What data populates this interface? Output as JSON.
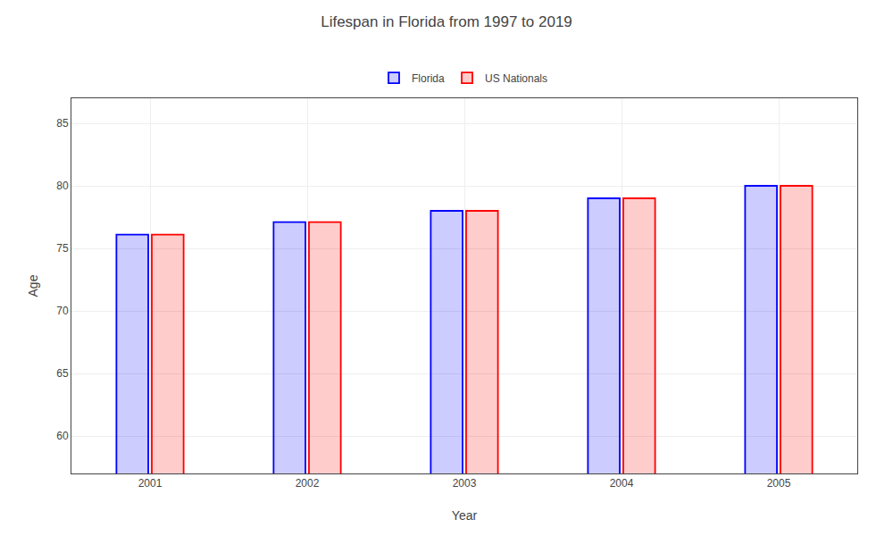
{
  "chart_data": {
    "type": "bar",
    "title": "Lifespan in Florida from 1997 to 2019",
    "xlabel": "Year",
    "ylabel": "Age",
    "categories": [
      "2001",
      "2002",
      "2003",
      "2004",
      "2005"
    ],
    "series": [
      {
        "name": "Florida",
        "color": "#0000ff",
        "values": [
          76.1,
          77.1,
          78.0,
          79.0,
          80.0
        ]
      },
      {
        "name": "US Nationals",
        "color": "#ff0000",
        "values": [
          76.1,
          77.1,
          78.0,
          79.0,
          80.0
        ]
      }
    ],
    "ylim": [
      57,
      87
    ],
    "yticks": [
      60,
      65,
      70,
      75,
      80,
      85
    ],
    "grid": true,
    "legend": "upper center"
  }
}
